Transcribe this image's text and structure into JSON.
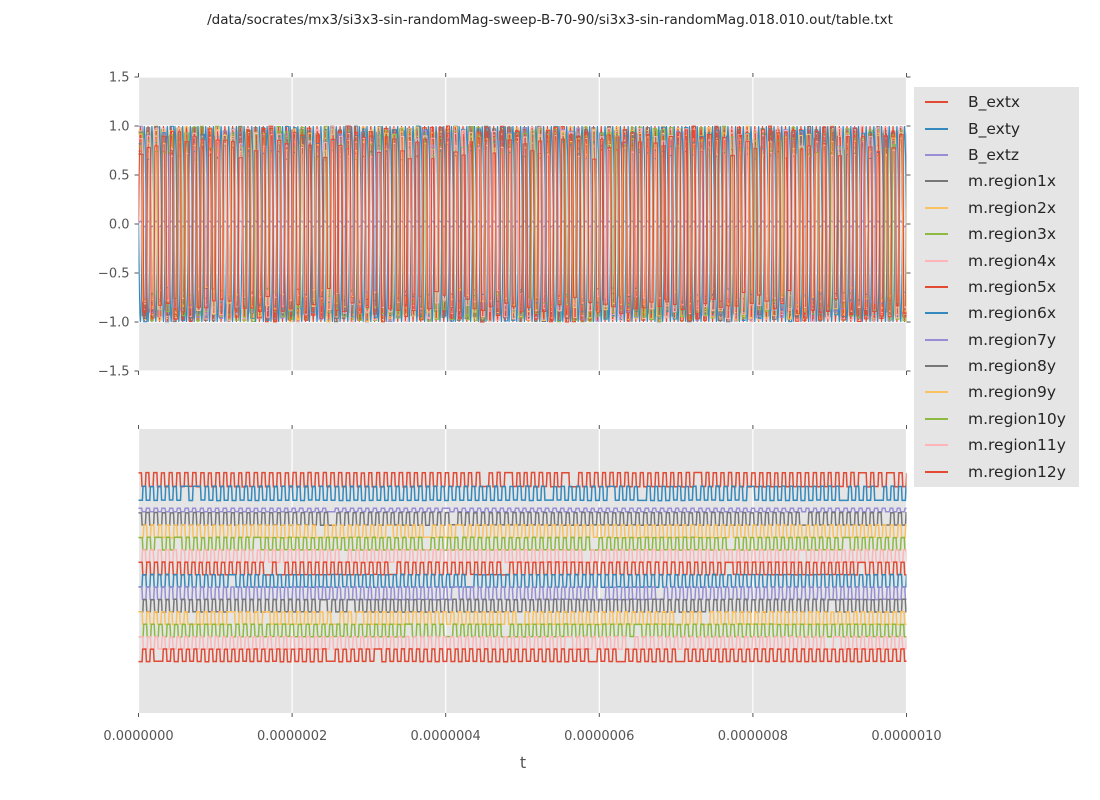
{
  "chart_data": {
    "type": "line",
    "title": "/data/socrates/mx3/si3x3-sin-randomMag-sweep-B-70-90/si3x3-sin-randomMag.018.010.out/table.txt",
    "xlabel": "t",
    "x_tick_labels": [
      "0.0000000",
      "0.0000002",
      "0.0000004",
      "0.0000006",
      "0.0000008",
      "0.0000010"
    ],
    "xlim": [
      0,
      1e-06
    ],
    "cycles": 100,
    "grid": "vertical-white-on-gray",
    "legend_position": "right-outside",
    "style": {
      "figure_bg": "#ffffff",
      "axes_bg": "#e5e5e5",
      "grid_color": "#ffffff",
      "tick_color": "#555555",
      "tick_label_color": "#555555",
      "text_color": "#262626"
    },
    "legend": {
      "entries": [
        {
          "label": "B_extx",
          "color": "#e24a33"
        },
        {
          "label": "B_exty",
          "color": "#348abd"
        },
        {
          "label": "B_extz",
          "color": "#988ed5"
        },
        {
          "label": "m.region1x",
          "color": "#777777"
        },
        {
          "label": "m.region2x",
          "color": "#fbc15e"
        },
        {
          "label": "m.region3x",
          "color": "#8eba42"
        },
        {
          "label": "m.region4x",
          "color": "#ffb5b8"
        },
        {
          "label": "m.region5x",
          "color": "#e24a33"
        },
        {
          "label": "m.region6x",
          "color": "#348abd"
        },
        {
          "label": "m.region7y",
          "color": "#988ed5"
        },
        {
          "label": "m.region8y",
          "color": "#777777"
        },
        {
          "label": "m.region9y",
          "color": "#fbc15e"
        },
        {
          "label": "m.region10y",
          "color": "#8eba42"
        },
        {
          "label": "m.region11y",
          "color": "#ffb5b8"
        },
        {
          "label": "m.region12y",
          "color": "#e24a33"
        }
      ]
    },
    "subplot_top": {
      "ylim": [
        -1.5,
        1.5
      ],
      "y_tick_labels": [
        "1.5",
        "1.0",
        "0.5",
        "0.0",
        "−0.5",
        "−1.0",
        "−1.5"
      ],
      "series": [
        {
          "name": "B_extx",
          "waveform": "sine",
          "amplitude": 1.0,
          "phase": 0
        },
        {
          "name": "B_exty",
          "waveform": "sine",
          "amplitude": 1.0,
          "phase": 3.14159
        },
        {
          "name": "B_extz",
          "waveform": "sine",
          "amplitude": 0.03,
          "phase": 0
        },
        {
          "name": "m.region1x",
          "waveform": "square_random",
          "level_min": 0.64,
          "level_max": 1.0
        },
        {
          "name": "m.region2x",
          "waveform": "square_random",
          "level_min": 0.64,
          "level_max": 1.0
        },
        {
          "name": "m.region3x",
          "waveform": "square_random",
          "level_min": 0.64,
          "level_max": 1.0
        },
        {
          "name": "m.region4x",
          "waveform": "square_random",
          "level_min": 0.64,
          "level_max": 1.0
        },
        {
          "name": "m.region5x",
          "waveform": "square_random",
          "level_min": 0.64,
          "level_max": 1.0
        },
        {
          "name": "m.region6x",
          "waveform": "square_random",
          "level_min": 0.64,
          "level_max": 1.0
        },
        {
          "name": "m.region7y",
          "waveform": "square_random",
          "level_min": 0.64,
          "level_max": 1.0
        },
        {
          "name": "m.region8y",
          "waveform": "square_random",
          "level_min": 0.64,
          "level_max": 1.0
        },
        {
          "name": "m.region9y",
          "waveform": "square_random",
          "level_min": 0.64,
          "level_max": 1.0
        },
        {
          "name": "m.region10y",
          "waveform": "square_random",
          "level_min": 0.64,
          "level_max": 1.0
        },
        {
          "name": "m.region11y",
          "waveform": "square_random",
          "level_min": 0.64,
          "level_max": 1.0
        },
        {
          "name": "m.region12y",
          "waveform": "square_random",
          "level_min": 0.64,
          "level_max": 1.0
        }
      ]
    },
    "subplot_bottom": {
      "y_tick_labels": [],
      "description": "same 15 signals shown as offset square waves toggling each half field cycle",
      "series": [
        {
          "name": "B_extx",
          "offset": 0.1785,
          "amplitude": 0.0246,
          "antiphase": false
        },
        {
          "name": "B_exty",
          "offset": 0.2264,
          "amplitude": 0.0246,
          "antiphase": true
        },
        {
          "name": "B_extz",
          "offset": 0.2852,
          "amplitude": 0.006,
          "antiphase": false
        },
        {
          "name": "m.region1x",
          "offset": 0.3165,
          "amplitude": 0.0218,
          "antiphase": false
        },
        {
          "name": "m.region2x",
          "offset": 0.3602,
          "amplitude": 0.0218,
          "antiphase": true
        },
        {
          "name": "m.region3x",
          "offset": 0.4038,
          "amplitude": 0.0218,
          "antiphase": false
        },
        {
          "name": "m.region4x",
          "offset": 0.4475,
          "amplitude": 0.0218,
          "antiphase": true
        },
        {
          "name": "m.region5x",
          "offset": 0.4911,
          "amplitude": 0.0218,
          "antiphase": false
        },
        {
          "name": "m.region6x",
          "offset": 0.5348,
          "amplitude": 0.0218,
          "antiphase": true
        },
        {
          "name": "m.region7y",
          "offset": 0.5785,
          "amplitude": 0.0218,
          "antiphase": false
        },
        {
          "name": "m.region8y",
          "offset": 0.6221,
          "amplitude": 0.0218,
          "antiphase": true
        },
        {
          "name": "m.region9y",
          "offset": 0.6658,
          "amplitude": 0.0218,
          "antiphase": false
        },
        {
          "name": "m.region10y",
          "offset": 0.7094,
          "amplitude": 0.0218,
          "antiphase": true
        },
        {
          "name": "m.region11y",
          "offset": 0.7531,
          "amplitude": 0.0218,
          "antiphase": false
        },
        {
          "name": "m.region12y",
          "offset": 0.7968,
          "amplitude": 0.0218,
          "antiphase": true
        }
      ]
    }
  }
}
